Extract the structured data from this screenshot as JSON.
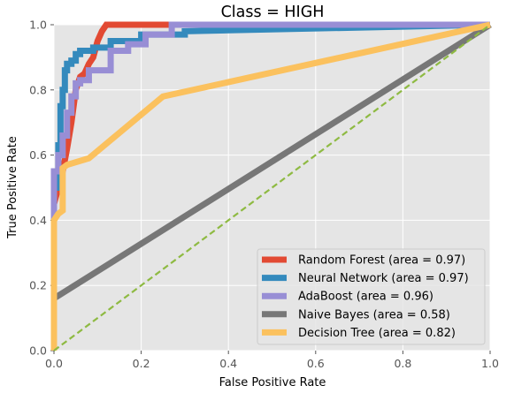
{
  "chart_data": {
    "type": "line",
    "title": "Class = HIGH",
    "xlabel": "False Positive Rate",
    "ylabel": "True Positive Rate",
    "xlim": [
      0,
      1
    ],
    "ylim": [
      0,
      1
    ],
    "xticks": [
      "0.0",
      "0.2",
      "0.4",
      "0.6",
      "0.8",
      "1.0"
    ],
    "yticks": [
      "0.0",
      "0.2",
      "0.4",
      "0.6",
      "0.8",
      "1.0"
    ],
    "grid": true,
    "legend_position": "lower-right",
    "colors": {
      "background": "#e5e5e5",
      "grid": "#ffffff",
      "diagonal": "#8eba42"
    },
    "diagonal": {
      "x": [
        0,
        1
      ],
      "y": [
        0,
        1
      ],
      "style": "dashed"
    },
    "series": [
      {
        "name": "Random Forest (area = 0.97)",
        "color": "#e24a33",
        "x": [
          0.0,
          0.0,
          0.01,
          0.02,
          0.03,
          0.04,
          0.05,
          0.06,
          0.07,
          0.08,
          0.09,
          0.1,
          0.11,
          0.12,
          0.2,
          1.0
        ],
        "y": [
          0.0,
          0.45,
          0.5,
          0.55,
          0.62,
          0.7,
          0.8,
          0.84,
          0.85,
          0.88,
          0.9,
          0.95,
          0.98,
          1.0,
          1.0,
          1.0
        ]
      },
      {
        "name": "Neural Network (area = 0.97)",
        "color": "#348abd",
        "x": [
          0.0,
          0.0,
          0.01,
          0.01,
          0.015,
          0.015,
          0.02,
          0.02,
          0.025,
          0.025,
          0.03,
          0.03,
          0.04,
          0.04,
          0.05,
          0.05,
          0.06,
          0.06,
          0.09,
          0.09,
          0.13,
          0.13,
          0.2,
          0.2,
          0.3,
          0.3,
          1.0
        ],
        "y": [
          0.0,
          0.5,
          0.5,
          0.63,
          0.63,
          0.75,
          0.75,
          0.8,
          0.8,
          0.86,
          0.86,
          0.88,
          0.88,
          0.89,
          0.89,
          0.91,
          0.91,
          0.92,
          0.92,
          0.93,
          0.93,
          0.95,
          0.95,
          0.97,
          0.97,
          0.98,
          1.0
        ]
      },
      {
        "name": "AdaBoost (area = 0.96)",
        "color": "#988ed5",
        "x": [
          0.0,
          0.0,
          0.01,
          0.01,
          0.02,
          0.02,
          0.03,
          0.03,
          0.04,
          0.04,
          0.05,
          0.05,
          0.06,
          0.06,
          0.08,
          0.08,
          0.13,
          0.13,
          0.17,
          0.17,
          0.21,
          0.21,
          0.27,
          0.27,
          1.0
        ],
        "y": [
          0.0,
          0.55,
          0.55,
          0.6,
          0.6,
          0.66,
          0.66,
          0.73,
          0.73,
          0.78,
          0.78,
          0.82,
          0.82,
          0.83,
          0.83,
          0.86,
          0.86,
          0.92,
          0.92,
          0.94,
          0.94,
          0.97,
          0.97,
          1.0,
          1.0
        ]
      },
      {
        "name": "Naive Bayes (area = 0.58)",
        "color": "#777777",
        "x": [
          0.0,
          0.0,
          1.0
        ],
        "y": [
          0.0,
          0.16,
          1.0
        ]
      },
      {
        "name": "Decision Tree (area = 0.82)",
        "color": "#fbc15e",
        "x": [
          0.0,
          0.0,
          0.01,
          0.02,
          0.02,
          0.03,
          0.08,
          0.25,
          1.0
        ],
        "y": [
          0.0,
          0.4,
          0.42,
          0.43,
          0.56,
          0.57,
          0.59,
          0.78,
          1.0
        ]
      }
    ]
  }
}
